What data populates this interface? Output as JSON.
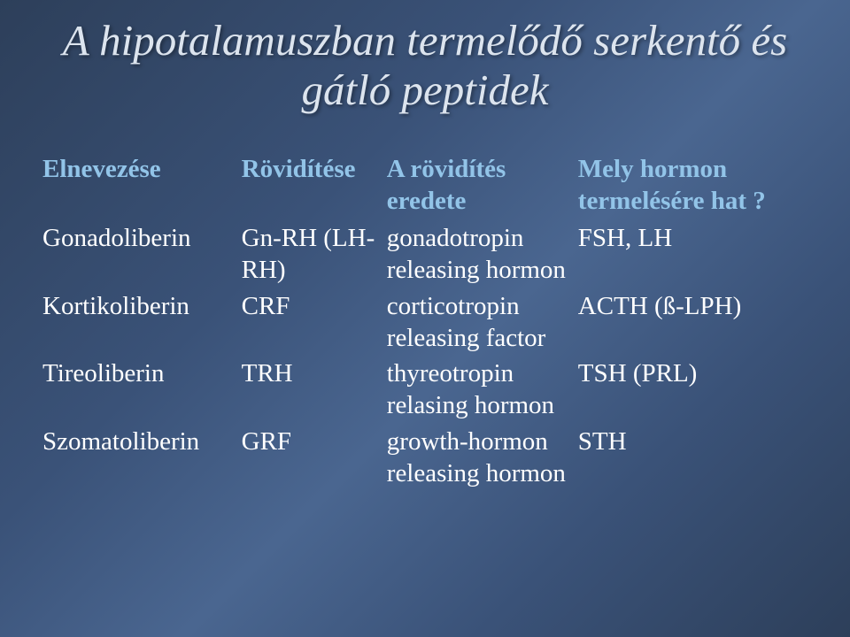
{
  "title": "A hipotalamuszban termelődő serkentő és gátló peptidek",
  "headers": {
    "col1": "Elnevezése",
    "col2": "Rövidítése",
    "col3": "A rövidítés eredete",
    "col4": "Mely hormon termelésére hat ?"
  },
  "rows": [
    {
      "name": "Gonadoliberin",
      "abbr": "Gn-RH (LH-RH)",
      "origin": "gonadotropin releasing hormon",
      "effect": "FSH, LH"
    },
    {
      "name": "Kortikoliberin",
      "abbr": "CRF",
      "origin": "corticotropin releasing factor",
      "effect": "ACTH (ß-LPH)"
    },
    {
      "name": "Tireoliberin",
      "abbr": "TRH",
      "origin": "thyreotropin relasing hormon",
      "effect": "TSH (PRL)"
    },
    {
      "name": "Szomatoliberin",
      "abbr": "GRF",
      "origin": "growth-hormon releasing hormon",
      "effect": "STH"
    }
  ]
}
